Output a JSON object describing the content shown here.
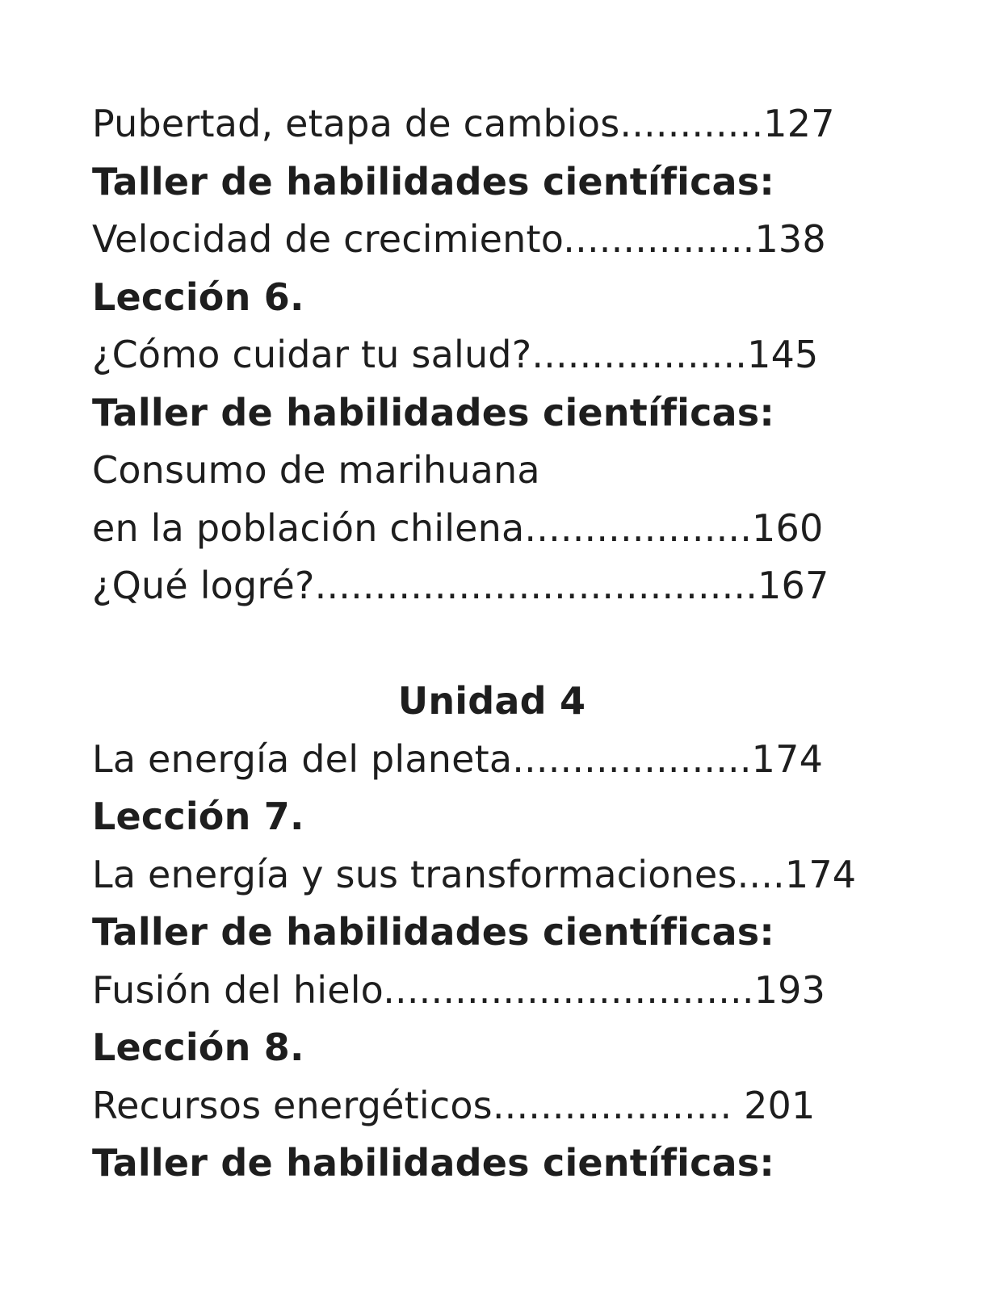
{
  "toc": {
    "l1": "Pubertad, etapa de cambios............127",
    "l2": "Taller de habilidades científicas:",
    "l3": "Velocidad de crecimiento................138",
    "l4": "Lección 6.",
    "l5": "¿Cómo cuidar tu salud?..................145",
    "l6": "Taller de habilidades científicas:",
    "l7": "Consumo de marihuana",
    "l8": "en la población chilena...................160",
    "l9": "¿Qué logré?.....................................167",
    "unit_heading": "Unidad 4",
    "l10": "La energía del planeta....................174",
    "l11": "Lección 7.",
    "l12": "La energía y sus transformaciones....174",
    "l13": "Taller de habilidades científicas:",
    "l14": "Fusión del hielo...............................193",
    "l15": "Lección 8.",
    "l16": "Recursos energéticos.................... 201",
    "l17": "Taller de habilidades científicas:"
  }
}
